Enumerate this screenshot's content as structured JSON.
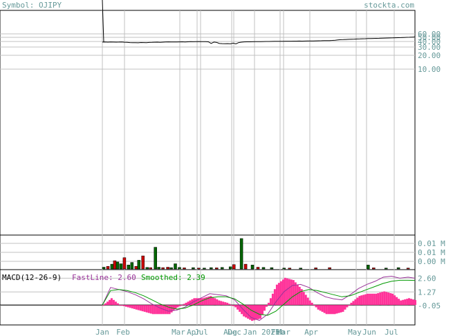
{
  "header": {
    "symbol_label": "Symbol: OJIPY",
    "site": "stockta.com"
  },
  "colors": {
    "frame": "#000000",
    "grid": "#c0c0c0",
    "axis_text": "#669999",
    "header_text": "#669999",
    "price_line": "#000000",
    "volume_up": "#006600",
    "volume_down": "#cc0000",
    "fast_line": "#993399",
    "smoothed_line": "#009900",
    "macd_hist": "#ff3399"
  },
  "chart_data": [
    {
      "type": "line",
      "name": "price",
      "y_scale": "log",
      "y_ticks": [
        "60.00",
        "50.00",
        "40.00",
        "30.00",
        "20.00",
        "10.00"
      ],
      "x": [
        0,
        4,
        8,
        12,
        16,
        20,
        24,
        28,
        32,
        36,
        40,
        44,
        48,
        52,
        56,
        60,
        64,
        68,
        72,
        76,
        80,
        84,
        88,
        92,
        96,
        100,
        104,
        108,
        112,
        116,
        120,
        124,
        128,
        132,
        136,
        140,
        144,
        148,
        150,
        154,
        158,
        162,
        166,
        170,
        174,
        178,
        182,
        186,
        190,
        194,
        198,
        202,
        206,
        210,
        214,
        218,
        222,
        226,
        230,
        234,
        238,
        242,
        246,
        250,
        254,
        258,
        262,
        266,
        270,
        274,
        278,
        282,
        286,
        290,
        294,
        298,
        302,
        306,
        310,
        314,
        318,
        322,
        326,
        330,
        334,
        338,
        342,
        346,
        350,
        354,
        358,
        362,
        366,
        370,
        374,
        378,
        382,
        386,
        390,
        394,
        398,
        402,
        406,
        410,
        414,
        418,
        422,
        426,
        430,
        434,
        438,
        442,
        446,
        450,
        454
      ],
      "values": [
        39.5,
        39.6,
        39.4,
        39.6,
        39.5,
        39.3,
        39.5,
        39.8,
        39.2,
        39.0,
        38.6,
        38.3,
        38.4,
        38.2,
        38.7,
        38.5,
        38.4,
        38.8,
        39.0,
        39.2,
        39.3,
        39.1,
        39.4,
        39.7,
        39.9,
        39.8,
        39.6,
        39.7,
        39.9,
        40.0,
        39.8,
        40.1,
        40.3,
        40.2,
        40.5,
        40.6,
        40.4,
        40.3,
        40.5,
        40.1,
        37.0,
        39.5,
        38.8,
        36.8,
        36.5,
        36.4,
        36.6,
        36.2,
        37.5,
        36.0,
        38.5,
        39.4,
        39.9,
        40.0,
        40.1,
        40.2,
        40.4,
        40.5,
        40.5,
        40.6,
        40.7,
        40.8,
        40.9,
        41.0,
        41.0,
        41.1,
        41.2,
        41.3,
        41.3,
        41.4,
        41.5,
        41.5,
        41.6,
        41.5,
        41.7,
        41.8,
        41.9,
        42.0,
        42.1,
        42.2,
        42.4,
        42.6,
        42.7,
        42.6,
        43.0,
        43.5,
        44.0,
        44.6,
        44.9,
        45.1,
        45.5,
        45.8,
        46.0,
        46.2,
        46.4,
        46.7,
        47.0,
        47.2,
        47.4,
        47.6,
        47.8,
        48.0,
        48.2,
        48.4,
        48.6,
        48.8,
        49.0,
        49.2,
        49.4,
        49.7,
        50.0,
        50.3,
        50.6,
        50.9,
        51.2
      ]
    },
    {
      "type": "bar",
      "name": "volume",
      "y_ticks": [
        "0.01 M",
        "0.01 M",
        "0.00 M"
      ],
      "bars": [
        {
          "x": 0,
          "v": 0.08,
          "c": "up"
        },
        {
          "x": 6,
          "v": 0.12,
          "c": "down"
        },
        {
          "x": 12,
          "v": 0.22,
          "c": "up"
        },
        {
          "x": 16,
          "v": 0.38,
          "c": "down"
        },
        {
          "x": 20,
          "v": 0.32,
          "c": "up"
        },
        {
          "x": 25,
          "v": 0.24,
          "c": "up"
        },
        {
          "x": 30,
          "v": 0.52,
          "c": "down"
        },
        {
          "x": 36,
          "v": 0.18,
          "c": "up"
        },
        {
          "x": 41,
          "v": 0.3,
          "c": "up"
        },
        {
          "x": 47,
          "v": 0.12,
          "c": "down"
        },
        {
          "x": 51,
          "v": 0.4,
          "c": "up"
        },
        {
          "x": 57,
          "v": 0.6,
          "c": "down"
        },
        {
          "x": 63,
          "v": 0.07,
          "c": "up"
        },
        {
          "x": 68,
          "v": 0.06,
          "c": "down"
        },
        {
          "x": 75,
          "v": 1.0,
          "c": "up"
        },
        {
          "x": 80,
          "v": 0.08,
          "c": "up"
        },
        {
          "x": 86,
          "v": 0.06,
          "c": "down"
        },
        {
          "x": 93,
          "v": 0.08,
          "c": "down"
        },
        {
          "x": 98,
          "v": 0.06,
          "c": "up"
        },
        {
          "x": 104,
          "v": 0.24,
          "c": "up"
        },
        {
          "x": 110,
          "v": 0.07,
          "c": "up"
        },
        {
          "x": 117,
          "v": 0.05,
          "c": "down"
        },
        {
          "x": 130,
          "v": 0.06,
          "c": "up"
        },
        {
          "x": 138,
          "v": 0.04,
          "c": "down"
        },
        {
          "x": 146,
          "v": 0.04,
          "c": "up"
        },
        {
          "x": 156,
          "v": 0.06,
          "c": "up"
        },
        {
          "x": 164,
          "v": 0.05,
          "c": "down"
        },
        {
          "x": 172,
          "v": 0.07,
          "c": "up"
        },
        {
          "x": 184,
          "v": 0.1,
          "c": "up"
        },
        {
          "x": 189,
          "v": 0.2,
          "c": "down"
        },
        {
          "x": 200,
          "v": 1.4,
          "c": "up"
        },
        {
          "x": 206,
          "v": 0.22,
          "c": "down"
        },
        {
          "x": 216,
          "v": 0.18,
          "c": "up"
        },
        {
          "x": 224,
          "v": 0.08,
          "c": "down"
        },
        {
          "x": 232,
          "v": 0.07,
          "c": "up"
        },
        {
          "x": 244,
          "v": 0.06,
          "c": "up"
        },
        {
          "x": 262,
          "v": 0.04,
          "c": "up"
        },
        {
          "x": 270,
          "v": 0.04,
          "c": "down"
        },
        {
          "x": 286,
          "v": 0.04,
          "c": "up"
        },
        {
          "x": 308,
          "v": 0.05,
          "c": "down"
        },
        {
          "x": 328,
          "v": 0.06,
          "c": "down"
        },
        {
          "x": 384,
          "v": 0.18,
          "c": "up"
        },
        {
          "x": 392,
          "v": 0.05,
          "c": "down"
        },
        {
          "x": 410,
          "v": 0.04,
          "c": "up"
        },
        {
          "x": 428,
          "v": 0.06,
          "c": "up"
        },
        {
          "x": 442,
          "v": 0.04,
          "c": "down"
        }
      ]
    },
    {
      "type": "line",
      "name": "MACD(12-26-9)",
      "legend": {
        "title": "MACD(12-26-9)",
        "fast": "FastLine: 2.60",
        "smoothed": "Smoothed: 2.39"
      },
      "y_ticks": [
        "2.60",
        "1.27",
        "-0.05"
      ],
      "ylim": [
        -1.8,
        3.3
      ],
      "x": [
        0,
        12,
        24,
        36,
        48,
        60,
        72,
        84,
        96,
        108,
        120,
        132,
        144,
        156,
        168,
        180,
        192,
        204,
        216,
        228,
        240,
        252,
        264,
        276,
        288,
        300,
        312,
        324,
        336,
        348,
        360,
        372,
        384,
        396,
        408,
        420,
        432,
        444,
        454
      ],
      "fast": [
        0.0,
        1.7,
        1.5,
        1.3,
        1.0,
        0.6,
        0.1,
        -0.3,
        -0.6,
        -0.5,
        -0.2,
        0.3,
        0.7,
        1.1,
        1.0,
        0.9,
        0.5,
        -0.4,
        -1.2,
        -1.5,
        -0.9,
        0.3,
        1.3,
        1.9,
        2.0,
        1.7,
        1.2,
        0.8,
        0.6,
        0.5,
        1.0,
        1.6,
        2.0,
        2.3,
        2.7,
        2.8,
        2.6,
        2.7,
        2.6
      ],
      "smoothed": [
        0.0,
        1.4,
        1.5,
        1.4,
        1.2,
        0.9,
        0.5,
        0.1,
        -0.2,
        -0.4,
        -0.3,
        0.0,
        0.4,
        0.7,
        0.8,
        0.8,
        0.6,
        0.1,
        -0.5,
        -0.9,
        -1.0,
        -0.6,
        0.1,
        0.8,
        1.3,
        1.5,
        1.4,
        1.2,
        1.0,
        0.8,
        0.9,
        1.2,
        1.5,
        1.8,
        2.1,
        2.3,
        2.4,
        2.4,
        2.39
      ]
    }
  ],
  "x_axis": {
    "labels": [
      "Jan",
      "Feb",
      "Mar",
      "Apr",
      "Jul",
      "Aug",
      "Dec",
      "Jan 2025",
      "Feb",
      "Mar",
      "Apr",
      "May",
      "Jun",
      "Jul"
    ]
  }
}
